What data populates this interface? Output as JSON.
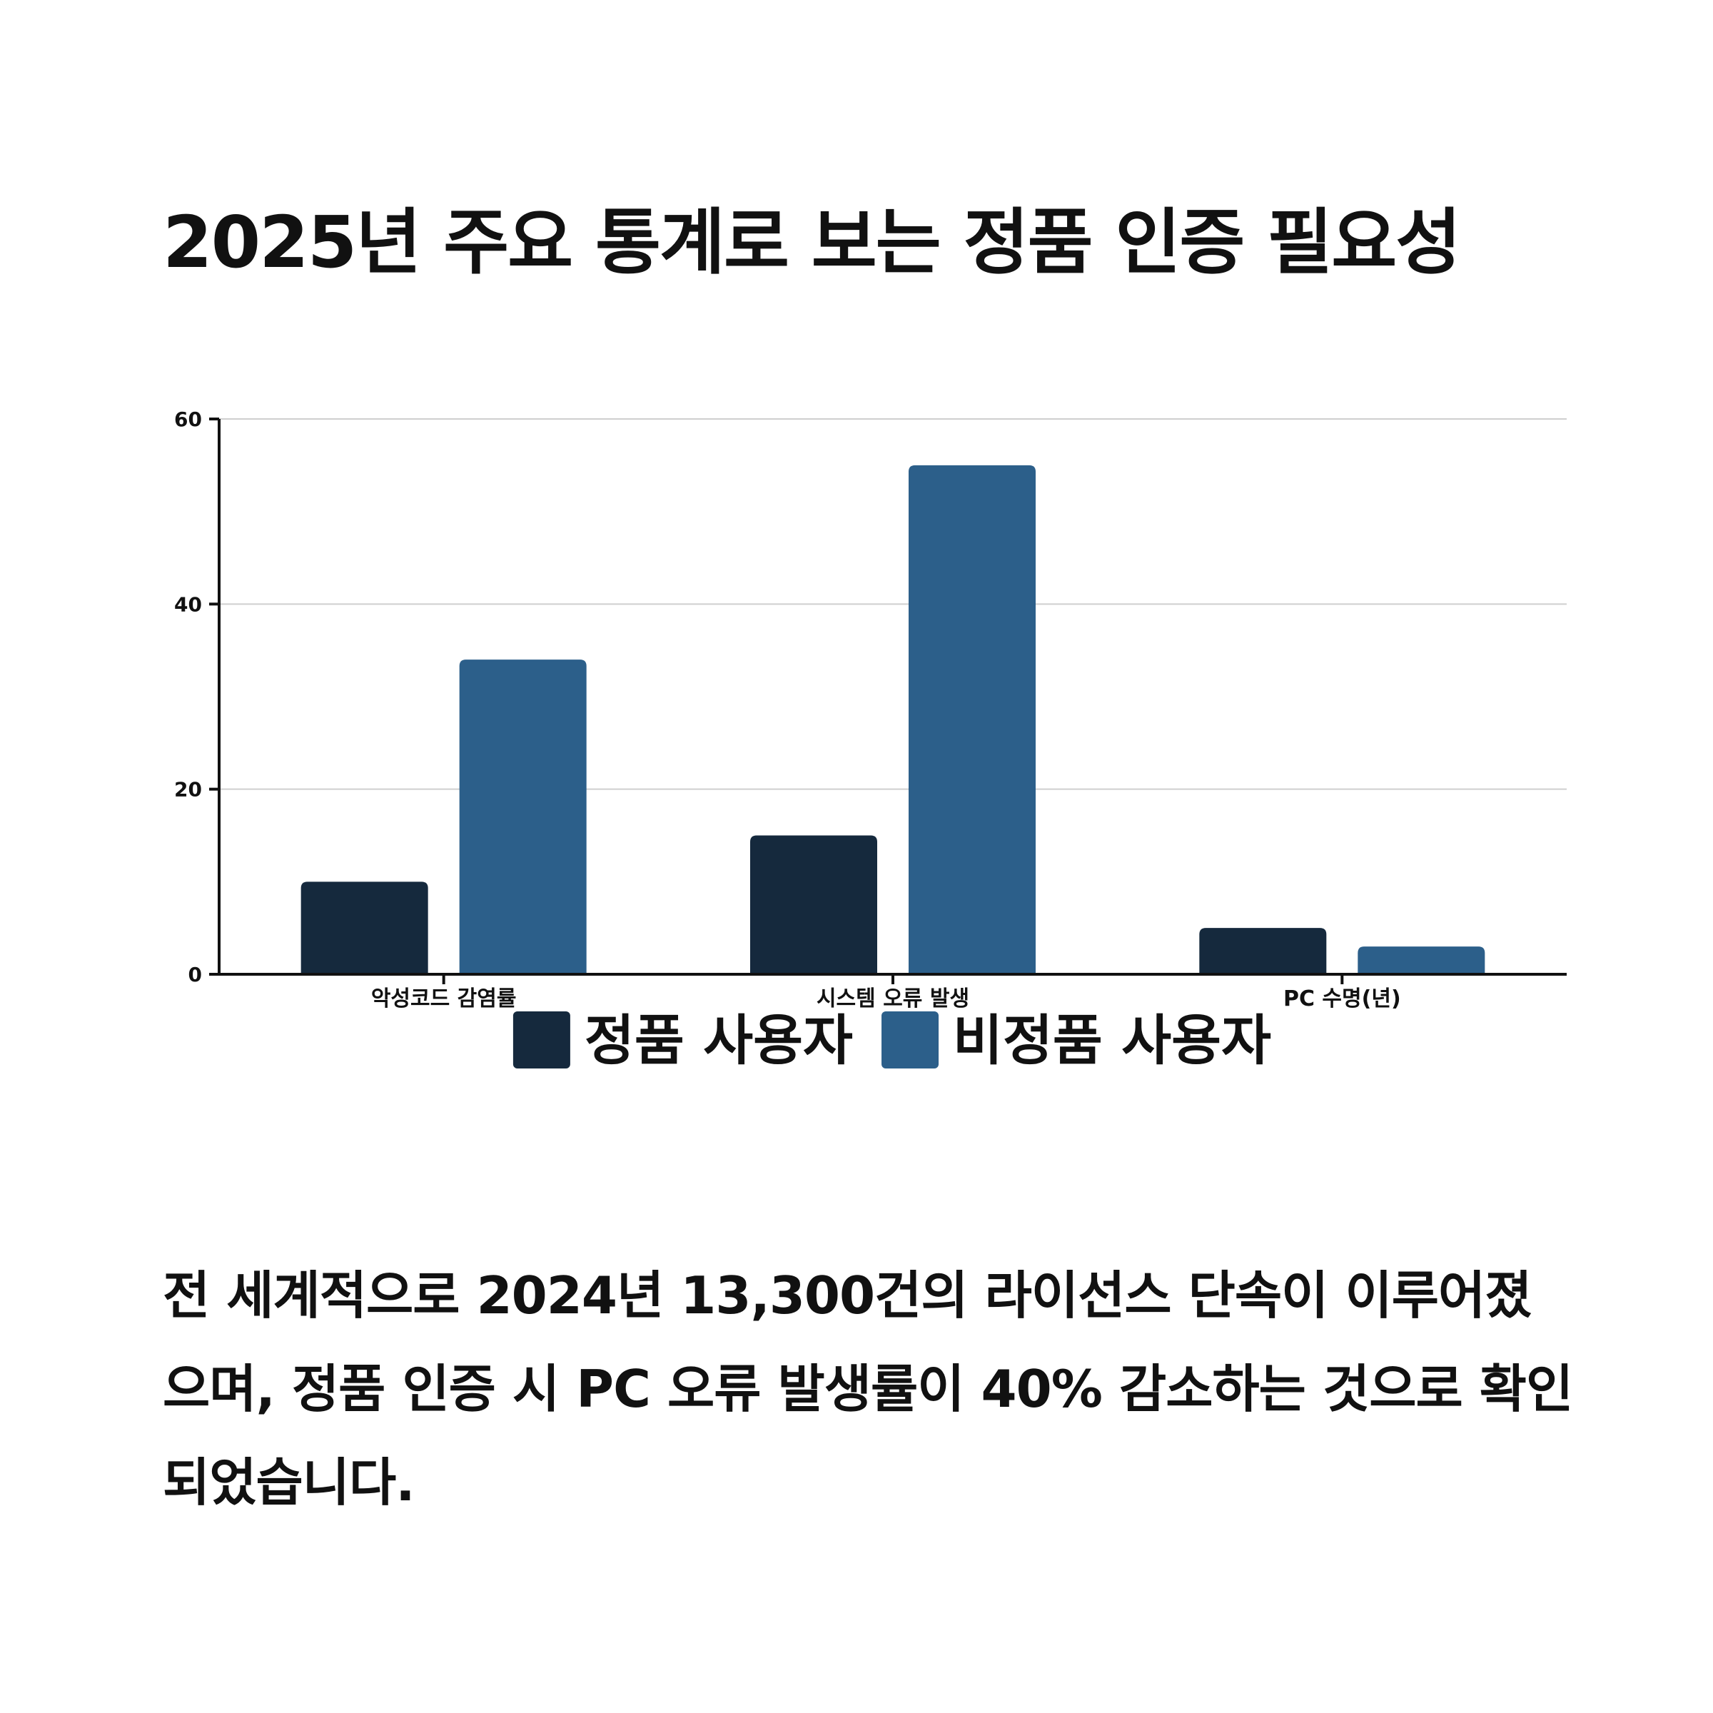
{
  "title": "2025년 주요 통계로 보는 정품 인증 필요성",
  "description": "전 세계적으로 2024년 13,300건의 라이선스 단속이 이루어졌으며, 정품 인증 시 PC 오류 발생률이 40% 감소하는 것으로 확인되었습니다.",
  "chart_data": {
    "type": "bar",
    "categories": [
      "악성코드 감염률",
      "시스템 오류 발생",
      "PC 수명(년)"
    ],
    "series": [
      {
        "name": "정품 사용자",
        "color": "#15293d",
        "values": [
          10,
          15,
          5
        ]
      },
      {
        "name": "비정품 사용자",
        "color": "#2c5f8a",
        "values": [
          34,
          55,
          3
        ]
      }
    ],
    "y_ticks": [
      "0",
      "20",
      "40",
      "60"
    ],
    "ylim": [
      0,
      60
    ],
    "grid": true,
    "legend_position": "bottom-center"
  }
}
